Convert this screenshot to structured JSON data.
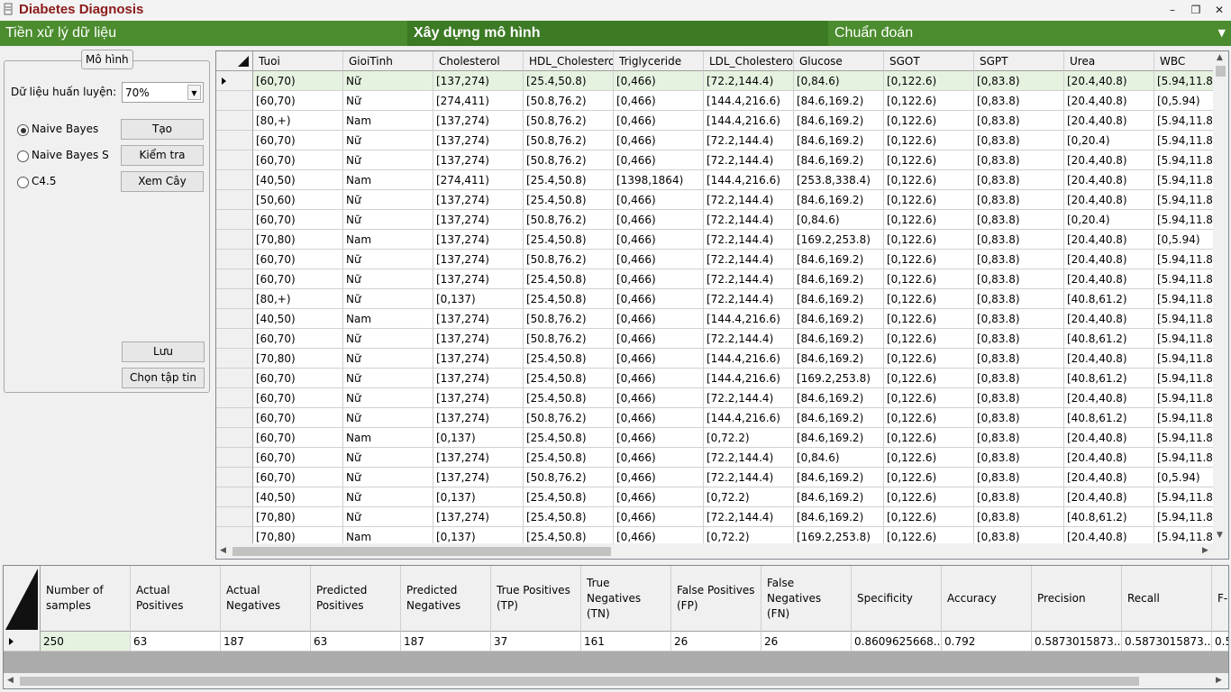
{
  "window": {
    "title": "Diabetes Diagnosis",
    "controls": [
      "–",
      "❐",
      "✕"
    ]
  },
  "tabs": [
    {
      "label": "Tiền xử lý dữ liệu",
      "active": false
    },
    {
      "label": "Xây dựng mô hình",
      "active": true
    },
    {
      "label": "Chuẩn đoán",
      "active": false
    }
  ],
  "tab_dropdown": "▼",
  "model_panel": {
    "title": "Mô hình",
    "training_label": "Dữ liệu huấn luyện:",
    "training_value": "70%",
    "algorithms": [
      {
        "label": "Naive Bayes",
        "checked": true
      },
      {
        "label": "Naive Bayes S",
        "checked": false
      },
      {
        "label": "C4.5",
        "checked": false
      }
    ],
    "create_button": "Tạo",
    "test_button": "Kiểm tra",
    "view_tree_button": "Xem Cây",
    "save_button": "Lưu",
    "choose_file_button": "Chọn tập tin"
  },
  "data_grid": {
    "columns": [
      "Tuoi",
      "GioiTinh",
      "Cholesterol",
      "HDL_Cholestero",
      "Triglyceride",
      "LDL_Cholesterol",
      "Glucose",
      "SGOT",
      "SGPT",
      "Urea",
      "WBC"
    ],
    "rows": [
      [
        "[60,70)",
        "Nữ",
        "[137,274)",
        "[25.4,50.8)",
        "[0,466)",
        "[72.2,144.4)",
        "[0,84.6)",
        "[0,122.6)",
        "[0,83.8)",
        "[20.4,40.8)",
        "[5.94,11.88"
      ],
      [
        "[60,70)",
        "Nữ",
        "[274,411)",
        "[50.8,76.2)",
        "[0,466)",
        "[144.4,216.6)",
        "[84.6,169.2)",
        "[0,122.6)",
        "[0,83.8)",
        "[20.4,40.8)",
        "[0,5.94)"
      ],
      [
        "[80,+)",
        "Nam",
        "[137,274)",
        "[50.8,76.2)",
        "[0,466)",
        "[144.4,216.6)",
        "[84.6,169.2)",
        "[0,122.6)",
        "[0,83.8)",
        "[20.4,40.8)",
        "[5.94,11.88"
      ],
      [
        "[60,70)",
        "Nữ",
        "[137,274)",
        "[50.8,76.2)",
        "[0,466)",
        "[72.2,144.4)",
        "[84.6,169.2)",
        "[0,122.6)",
        "[0,83.8)",
        "[0,20.4)",
        "[5.94,11.88"
      ],
      [
        "[60,70)",
        "Nữ",
        "[137,274)",
        "[50.8,76.2)",
        "[0,466)",
        "[72.2,144.4)",
        "[84.6,169.2)",
        "[0,122.6)",
        "[0,83.8)",
        "[20.4,40.8)",
        "[5.94,11.88"
      ],
      [
        "[40,50)",
        "Nam",
        "[274,411)",
        "[25.4,50.8)",
        "[1398,1864)",
        "[144.4,216.6)",
        "[253.8,338.4)",
        "[0,122.6)",
        "[0,83.8)",
        "[20.4,40.8)",
        "[5.94,11.88"
      ],
      [
        "[50,60)",
        "Nữ",
        "[137,274)",
        "[25.4,50.8)",
        "[0,466)",
        "[72.2,144.4)",
        "[84.6,169.2)",
        "[0,122.6)",
        "[0,83.8)",
        "[20.4,40.8)",
        "[5.94,11.88"
      ],
      [
        "[60,70)",
        "Nữ",
        "[137,274)",
        "[50.8,76.2)",
        "[0,466)",
        "[72.2,144.4)",
        "[0,84.6)",
        "[0,122.6)",
        "[0,83.8)",
        "[0,20.4)",
        "[5.94,11.88"
      ],
      [
        "[70,80)",
        "Nam",
        "[137,274)",
        "[25.4,50.8)",
        "[0,466)",
        "[72.2,144.4)",
        "[169.2,253.8)",
        "[0,122.6)",
        "[0,83.8)",
        "[20.4,40.8)",
        "[0,5.94)"
      ],
      [
        "[60,70)",
        "Nữ",
        "[137,274)",
        "[50.8,76.2)",
        "[0,466)",
        "[72.2,144.4)",
        "[84.6,169.2)",
        "[0,122.6)",
        "[0,83.8)",
        "[20.4,40.8)",
        "[5.94,11.88"
      ],
      [
        "[60,70)",
        "Nữ",
        "[137,274)",
        "[25.4,50.8)",
        "[0,466)",
        "[72.2,144.4)",
        "[84.6,169.2)",
        "[0,122.6)",
        "[0,83.8)",
        "[20.4,40.8)",
        "[5.94,11.88"
      ],
      [
        "[80,+)",
        "Nữ",
        "[0,137)",
        "[25.4,50.8)",
        "[0,466)",
        "[72.2,144.4)",
        "[84.6,169.2)",
        "[0,122.6)",
        "[0,83.8)",
        "[40.8,61.2)",
        "[5.94,11.88"
      ],
      [
        "[40,50)",
        "Nam",
        "[137,274)",
        "[50.8,76.2)",
        "[0,466)",
        "[144.4,216.6)",
        "[84.6,169.2)",
        "[0,122.6)",
        "[0,83.8)",
        "[20.4,40.8)",
        "[5.94,11.88"
      ],
      [
        "[60,70)",
        "Nữ",
        "[137,274)",
        "[50.8,76.2)",
        "[0,466)",
        "[72.2,144.4)",
        "[84.6,169.2)",
        "[0,122.6)",
        "[0,83.8)",
        "[40.8,61.2)",
        "[5.94,11.88"
      ],
      [
        "[70,80)",
        "Nữ",
        "[137,274)",
        "[25.4,50.8)",
        "[0,466)",
        "[144.4,216.6)",
        "[84.6,169.2)",
        "[0,122.6)",
        "[0,83.8)",
        "[20.4,40.8)",
        "[5.94,11.88"
      ],
      [
        "[60,70)",
        "Nữ",
        "[137,274)",
        "[25.4,50.8)",
        "[0,466)",
        "[144.4,216.6)",
        "[169.2,253.8)",
        "[0,122.6)",
        "[0,83.8)",
        "[40.8,61.2)",
        "[5.94,11.88"
      ],
      [
        "[60,70)",
        "Nữ",
        "[137,274)",
        "[25.4,50.8)",
        "[0,466)",
        "[72.2,144.4)",
        "[84.6,169.2)",
        "[0,122.6)",
        "[0,83.8)",
        "[20.4,40.8)",
        "[5.94,11.88"
      ],
      [
        "[60,70)",
        "Nữ",
        "[137,274)",
        "[50.8,76.2)",
        "[0,466)",
        "[144.4,216.6)",
        "[84.6,169.2)",
        "[0,122.6)",
        "[0,83.8)",
        "[40.8,61.2)",
        "[5.94,11.88"
      ],
      [
        "[60,70)",
        "Nam",
        "[0,137)",
        "[25.4,50.8)",
        "[0,466)",
        "[0,72.2)",
        "[84.6,169.2)",
        "[0,122.6)",
        "[0,83.8)",
        "[20.4,40.8)",
        "[5.94,11.88"
      ],
      [
        "[60,70)",
        "Nữ",
        "[137,274)",
        "[25.4,50.8)",
        "[0,466)",
        "[72.2,144.4)",
        "[0,84.6)",
        "[0,122.6)",
        "[0,83.8)",
        "[20.4,40.8)",
        "[5.94,11.88"
      ],
      [
        "[60,70)",
        "Nữ",
        "[137,274)",
        "[50.8,76.2)",
        "[0,466)",
        "[72.2,144.4)",
        "[84.6,169.2)",
        "[0,122.6)",
        "[0,83.8)",
        "[20.4,40.8)",
        "[0,5.94)"
      ],
      [
        "[40,50)",
        "Nữ",
        "[0,137)",
        "[25.4,50.8)",
        "[0,466)",
        "[0,72.2)",
        "[84.6,169.2)",
        "[0,122.6)",
        "[0,83.8)",
        "[20.4,40.8)",
        "[5.94,11.88"
      ],
      [
        "[70,80)",
        "Nữ",
        "[137,274)",
        "[25.4,50.8)",
        "[0,466)",
        "[72.2,144.4)",
        "[84.6,169.2)",
        "[0,122.6)",
        "[0,83.8)",
        "[40.8,61.2)",
        "[5.94,11.88"
      ],
      [
        "[70,80)",
        "Nam",
        "[0,137)",
        "[25.4,50.8)",
        "[0,466)",
        "[0,72.2)",
        "[169.2,253.8)",
        "[0,122.6)",
        "[0,83.8)",
        "[20.4,40.8)",
        "[5.94,11.88"
      ]
    ]
  },
  "stats_grid": {
    "columns": [
      "Number of samples",
      "Actual Positives",
      "Actual Negatives",
      "Predicted Positives",
      "Predicted Negatives",
      "True Positives (TP)",
      "True Negatives (TN)",
      "False Positives (FP)",
      "False Negatives (FN)",
      "Specificity",
      "Accuracy",
      "Precision",
      "Recall",
      "F-"
    ],
    "row": [
      "250",
      "63",
      "187",
      "63",
      "187",
      "37",
      "161",
      "26",
      "26",
      "0.8609625668...",
      "0.792",
      "0.5873015873...",
      "0.5873015873...",
      "0.5"
    ]
  },
  "colors": {
    "title": "#8b1a1a",
    "tab_bar": "#4b8c2e",
    "tab_active": "#3c7a24",
    "selected_row": "#e6f2e0"
  }
}
